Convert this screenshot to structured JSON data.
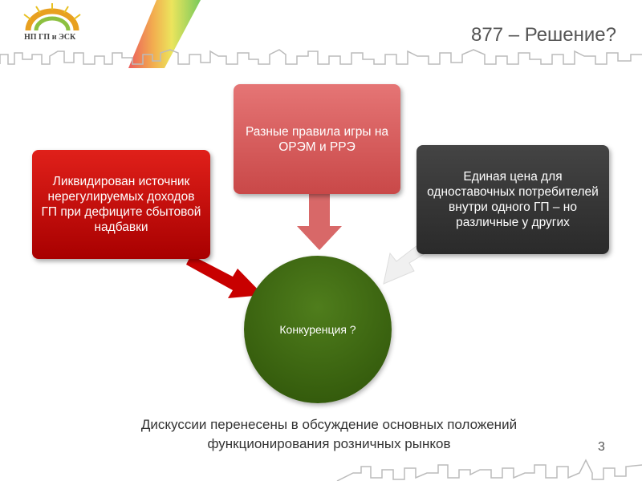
{
  "header": {
    "logo_text": "НП ГП и ЭСК",
    "title": "877 – Решение?"
  },
  "diagram": {
    "left_box": "Ликвидирован источник нерегулируемых доходов ГП при дефиците сбытовой надбавки",
    "top_box": "Разные правила игры на ОРЭМ и РРЭ",
    "right_box": "Единая цена для одноставочных потребителей внутри одного ГП – но различные у других",
    "center": "Конкуренция ?",
    "colors": {
      "left": "#c00000",
      "top": "#d86060",
      "right": "#333333",
      "center": "#3a6512"
    }
  },
  "footer": {
    "text_line1": "Дискуссии перенесены в обсуждение основных положений",
    "text_line2": "функционирования розничных рынков",
    "page_number": "3"
  }
}
